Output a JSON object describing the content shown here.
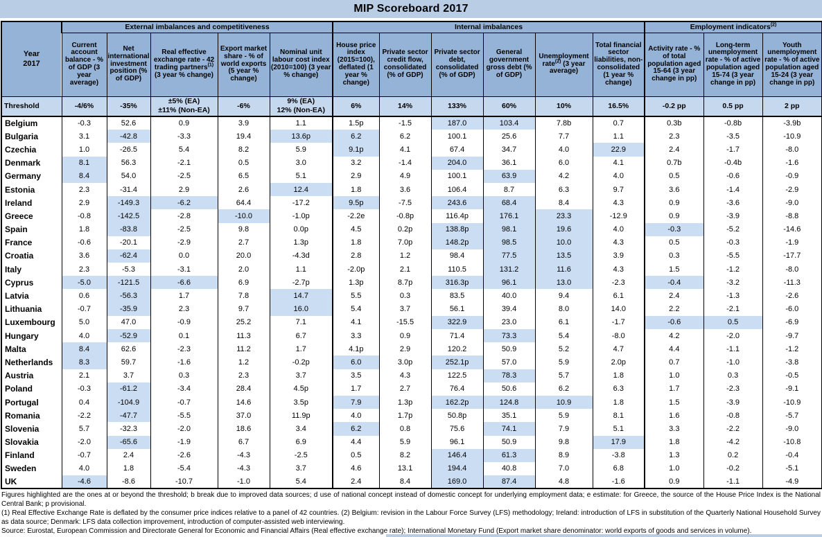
{
  "title": "MIP Scoreboard 2017",
  "year_label": "Year\n2017",
  "groups": [
    {
      "label": "External imbalances and competitiveness",
      "sup": "",
      "span": 5
    },
    {
      "label": "Internal imbalances",
      "sup": "",
      "span": 6
    },
    {
      "label": "Employment indicators",
      "sup": "(2)",
      "span": 3
    }
  ],
  "columns": [
    {
      "key": "current-account",
      "pre": "Current account balance - % of GDP (3 year average)",
      "sup": "",
      "post": ""
    },
    {
      "key": "niip",
      "pre": "Net international investment position (% of GDP)",
      "sup": "",
      "post": ""
    },
    {
      "key": "reer",
      "pre": "Real effective exchange rate - 42 trading partners",
      "sup": "(1)",
      "post": " (3 year % change)"
    },
    {
      "key": "export-market-share",
      "pre": "Export market share - % of world exports (5 year % change)",
      "sup": "",
      "post": ""
    },
    {
      "key": "nulc",
      "pre": "Nominal unit labour cost index (2010=100) (3 year % change)",
      "sup": "",
      "post": ""
    },
    {
      "key": "house-price",
      "pre": "House price index (2015=100), deflated (1 year % change)",
      "sup": "",
      "post": ""
    },
    {
      "key": "private-credit-flow",
      "pre": "Private sector credit flow, consolidated (% of GDP)",
      "sup": "",
      "post": ""
    },
    {
      "key": "private-debt",
      "pre": "Private sector debt, consolidated (% of GDP)",
      "sup": "",
      "post": ""
    },
    {
      "key": "gov-debt",
      "pre": "General government gross debt (% of GDP)",
      "sup": "",
      "post": ""
    },
    {
      "key": "unemployment",
      "pre": "Unemployment rate",
      "sup": "(2)",
      "post": " (3 year average)"
    },
    {
      "key": "financial-liabilities",
      "pre": "Total financial sector liabilities, non-consolidated (1 year % change)",
      "sup": "",
      "post": ""
    },
    {
      "key": "activity-rate",
      "pre": "Activity rate - % of total population aged 15-64 (3 year change in pp)",
      "sup": "",
      "post": ""
    },
    {
      "key": "long-term-unemployment",
      "pre": "Long-term unemployment rate - % of active population aged 15-74 (3 year change in pp)",
      "sup": "",
      "post": ""
    },
    {
      "key": "youth-unemployment",
      "pre": "Youth unemployment rate - % of active population aged 15-24 (3 year change in pp)",
      "sup": "",
      "post": ""
    }
  ],
  "threshold_label": "Threshold",
  "thresholds": [
    "-4/6%",
    "-35%",
    "±5% (EA)\n±11% (Non-EA)",
    "-6%",
    "9% (EA)\n12% (Non-EA)",
    "6%",
    "14%",
    "133%",
    "60%",
    "10%",
    "16.5%",
    "-0.2 pp",
    "0.5 pp",
    "2 pp"
  ],
  "rows": [
    {
      "country": "Belgium",
      "values": [
        "-0.3",
        "52.6",
        "0.9",
        "3.9",
        "1.1",
        "1.5p",
        "-1.5",
        "187.0",
        "103.4",
        "7.8b",
        "0.7",
        "0.3b",
        "-0.8b",
        "-3.9b"
      ],
      "highlight": [
        7,
        8
      ]
    },
    {
      "country": "Bulgaria",
      "values": [
        "3.1",
        "-42.8",
        "-3.3",
        "19.4",
        "13.6p",
        "6.2",
        "6.2",
        "100.1",
        "25.6",
        "7.7",
        "1.1",
        "2.3",
        "-3.5",
        "-10.9"
      ],
      "highlight": [
        1,
        4,
        5
      ]
    },
    {
      "country": "Czechia",
      "values": [
        "1.0",
        "-26.5",
        "5.4",
        "8.2",
        "5.9",
        "9.1p",
        "4.1",
        "67.4",
        "34.7",
        "4.0",
        "22.9",
        "2.4",
        "-1.7",
        "-8.0"
      ],
      "highlight": [
        5,
        10
      ]
    },
    {
      "country": "Denmark",
      "values": [
        "8.1",
        "56.3",
        "-2.1",
        "0.5",
        "3.0",
        "3.2",
        "-1.4",
        "204.0",
        "36.1",
        "6.0",
        "4.1",
        "0.7b",
        "-0.4b",
        "-1.6"
      ],
      "highlight": [
        0,
        7
      ]
    },
    {
      "country": "Germany",
      "values": [
        "8.4",
        "54.0",
        "-2.5",
        "6.5",
        "5.1",
        "2.9",
        "4.9",
        "100.1",
        "63.9",
        "4.2",
        "4.0",
        "0.5",
        "-0.6",
        "-0.9"
      ],
      "highlight": [
        0,
        8
      ]
    },
    {
      "country": "Estonia",
      "values": [
        "2.3",
        "-31.4",
        "2.9",
        "2.6",
        "12.4",
        "1.8",
        "3.6",
        "106.4",
        "8.7",
        "6.3",
        "9.7",
        "3.6",
        "-1.4",
        "-2.9"
      ],
      "highlight": [
        4
      ]
    },
    {
      "country": "Ireland",
      "values": [
        "2.9",
        "-149.3",
        "-6.2",
        "64.4",
        "-17.2",
        "9.5p",
        "-7.5",
        "243.6",
        "68.4",
        "8.4",
        "4.3",
        "0.9",
        "-3.6",
        "-9.0"
      ],
      "highlight": [
        1,
        2,
        5,
        7,
        8
      ]
    },
    {
      "country": "Greece",
      "values": [
        "-0.8",
        "-142.5",
        "-2.8",
        "-10.0",
        "-1.0p",
        "-2.2e",
        "-0.8p",
        "116.4p",
        "176.1",
        "23.3",
        "-12.9",
        "0.9",
        "-3.9",
        "-8.8"
      ],
      "highlight": [
        1,
        3,
        8,
        9
      ]
    },
    {
      "country": "Spain",
      "values": [
        "1.8",
        "-83.8",
        "-2.5",
        "9.8",
        "0.0p",
        "4.5",
        "0.2p",
        "138.8p",
        "98.1",
        "19.6",
        "4.0",
        "-0.3",
        "-5.2",
        "-14.6"
      ],
      "highlight": [
        1,
        7,
        8,
        9,
        11
      ]
    },
    {
      "country": "France",
      "values": [
        "-0.6",
        "-20.1",
        "-2.9",
        "2.7",
        "1.3p",
        "1.8",
        "7.0p",
        "148.2p",
        "98.5",
        "10.0",
        "4.3",
        "0.5",
        "-0.3",
        "-1.9"
      ],
      "highlight": [
        7,
        8,
        9
      ]
    },
    {
      "country": "Croatia",
      "values": [
        "3.6",
        "-62.4",
        "0.0",
        "20.0",
        "-4.3d",
        "2.8",
        "1.2",
        "98.4",
        "77.5",
        "13.5",
        "3.9",
        "0.3",
        "-5.5",
        "-17.7"
      ],
      "highlight": [
        1,
        8,
        9
      ]
    },
    {
      "country": "Italy",
      "values": [
        "2.3",
        "-5.3",
        "-3.1",
        "2.0",
        "1.1",
        "-2.0p",
        "2.1",
        "110.5",
        "131.2",
        "11.6",
        "4.3",
        "1.5",
        "-1.2",
        "-8.0"
      ],
      "highlight": [
        8,
        9
      ]
    },
    {
      "country": "Cyprus",
      "values": [
        "-5.0",
        "-121.5",
        "-6.6",
        "6.9",
        "-2.7p",
        "1.3p",
        "8.7p",
        "316.3p",
        "96.1",
        "13.0",
        "-2.3",
        "-0.4",
        "-3.2",
        "-11.3"
      ],
      "highlight": [
        0,
        1,
        2,
        7,
        8,
        9,
        11
      ]
    },
    {
      "country": "Latvia",
      "values": [
        "0.6",
        "-56.3",
        "1.7",
        "7.8",
        "14.7",
        "5.5",
        "0.3",
        "83.5",
        "40.0",
        "9.4",
        "6.1",
        "2.4",
        "-1.3",
        "-2.6"
      ],
      "highlight": [
        1,
        4
      ]
    },
    {
      "country": "Lithuania",
      "values": [
        "-0.7",
        "-35.9",
        "2.3",
        "9.7",
        "16.0",
        "5.4",
        "3.7",
        "56.1",
        "39.4",
        "8.0",
        "14.0",
        "2.2",
        "-2.1",
        "-6.0"
      ],
      "highlight": [
        1,
        4
      ]
    },
    {
      "country": "Luxembourg",
      "values": [
        "5.0",
        "47.0",
        "-0.9",
        "25.2",
        "7.1",
        "4.1",
        "-15.5",
        "322.9",
        "23.0",
        "6.1",
        "-1.7",
        "-0.6",
        "0.5",
        "-6.9"
      ],
      "highlight": [
        7,
        11,
        12
      ]
    },
    {
      "country": "Hungary",
      "values": [
        "4.0",
        "-52.9",
        "0.1",
        "11.3",
        "6.7",
        "3.3",
        "0.9",
        "71.4",
        "73.3",
        "5.4",
        "-8.0",
        "4.2",
        "-2.0",
        "-9.7"
      ],
      "highlight": [
        1,
        8
      ]
    },
    {
      "country": "Malta",
      "values": [
        "8.4",
        "62.6",
        "-2.3",
        "11.2",
        "1.7",
        "4.1p",
        "2.9",
        "120.2",
        "50.9",
        "5.2",
        "4.7",
        "4.4",
        "-1.1",
        "-1.2"
      ],
      "highlight": [
        0
      ]
    },
    {
      "country": "Netherlands",
      "values": [
        "8.3",
        "59.7",
        "-1.6",
        "1.2",
        "-0.2p",
        "6.0",
        "3.0p",
        "252.1p",
        "57.0",
        "5.9",
        "2.0p",
        "0.7",
        "-1.0",
        "-3.8"
      ],
      "highlight": [
        0,
        5,
        7
      ]
    },
    {
      "country": "Austria",
      "values": [
        "2.1",
        "3.7",
        "0.3",
        "2.3",
        "3.7",
        "3.5",
        "4.3",
        "122.5",
        "78.3",
        "5.7",
        "1.8",
        "1.0",
        "0.3",
        "-0.5"
      ],
      "highlight": [
        8
      ]
    },
    {
      "country": "Poland",
      "values": [
        "-0.3",
        "-61.2",
        "-3.4",
        "28.4",
        "4.5p",
        "1.7",
        "2.7",
        "76.4",
        "50.6",
        "6.2",
        "6.3",
        "1.7",
        "-2.3",
        "-9.1"
      ],
      "highlight": [
        1
      ]
    },
    {
      "country": "Portugal",
      "values": [
        "0.4",
        "-104.9",
        "-0.7",
        "14.6",
        "3.5p",
        "7.9",
        "1.3p",
        "162.2p",
        "124.8",
        "10.9",
        "1.8",
        "1.5",
        "-3.9",
        "-10.9"
      ],
      "highlight": [
        1,
        5,
        7,
        8,
        9
      ]
    },
    {
      "country": "Romania",
      "values": [
        "-2.2",
        "-47.7",
        "-5.5",
        "37.0",
        "11.9p",
        "4.0",
        "1.7p",
        "50.8p",
        "35.1",
        "5.9",
        "8.1",
        "1.6",
        "-0.8",
        "-5.7"
      ],
      "highlight": [
        1
      ]
    },
    {
      "country": "Slovenia",
      "values": [
        "5.7",
        "-32.3",
        "-2.0",
        "18.6",
        "3.4",
        "6.2",
        "0.8",
        "75.6",
        "74.1",
        "7.9",
        "5.1",
        "3.3",
        "-2.2",
        "-9.0"
      ],
      "highlight": [
        5,
        8
      ]
    },
    {
      "country": "Slovakia",
      "values": [
        "-2.0",
        "-65.6",
        "-1.9",
        "6.7",
        "6.9",
        "4.4",
        "5.9",
        "96.1",
        "50.9",
        "9.8",
        "17.9",
        "1.8",
        "-4.2",
        "-10.8"
      ],
      "highlight": [
        1,
        10
      ]
    },
    {
      "country": "Finland",
      "values": [
        "-0.7",
        "2.4",
        "-2.6",
        "-4.3",
        "-2.5",
        "0.5",
        "8.2",
        "146.4",
        "61.3",
        "8.9",
        "-3.8",
        "1.3",
        "0.2",
        "-0.4"
      ],
      "highlight": [
        7,
        8
      ]
    },
    {
      "country": "Sweden",
      "values": [
        "4.0",
        "1.8",
        "-5.4",
        "-4.3",
        "3.7",
        "4.6",
        "13.1",
        "194.4",
        "40.8",
        "7.0",
        "6.8",
        "1.0",
        "-0.2",
        "-5.1"
      ],
      "highlight": [
        7
      ]
    },
    {
      "country": "UK",
      "values": [
        "-4.6",
        "-8.6",
        "-10.7",
        "-1.0",
        "5.4",
        "2.4",
        "8.4",
        "169.0",
        "87.4",
        "4.8",
        "-1.6",
        "0.9",
        "-1.1",
        "-4.9"
      ],
      "highlight": [
        0,
        7,
        8
      ]
    }
  ],
  "footnotes": [
    "Figures highlighted are the ones at or beyond the threshold; b break due to improved data sources;  d use of national concept instead of domestic concept for underlying employment data;  e estimate: for Greece, the source of the House Price Index is the National Central Bank; p provisional.",
    "(1)  Real Effective Exchange Rate is deflated by the consumer price indices relative to a panel of 42 countries. (2) Belgium: revision in the Labour Force Survey (LFS) methodology; Ireland: introduction of LFS in substitution of the Quarterly National Household Survey as data source; Denmark: LFS data collection improvement, introduction of computer-assisted web interviewing.",
    "Source: Eurostat, European Commission and Directorate General for Economic and Financial Affairs (Real effective exchange rate); International Monetary Fund (Export market share denominator: world exports of goods and services in volume)."
  ],
  "colors": {
    "title_band": "#b9cde5",
    "header_blue": "#95b3d7",
    "threshold_row": "#c5d8ee",
    "highlight_cell": "#cbddf2",
    "border": "#000000"
  }
}
